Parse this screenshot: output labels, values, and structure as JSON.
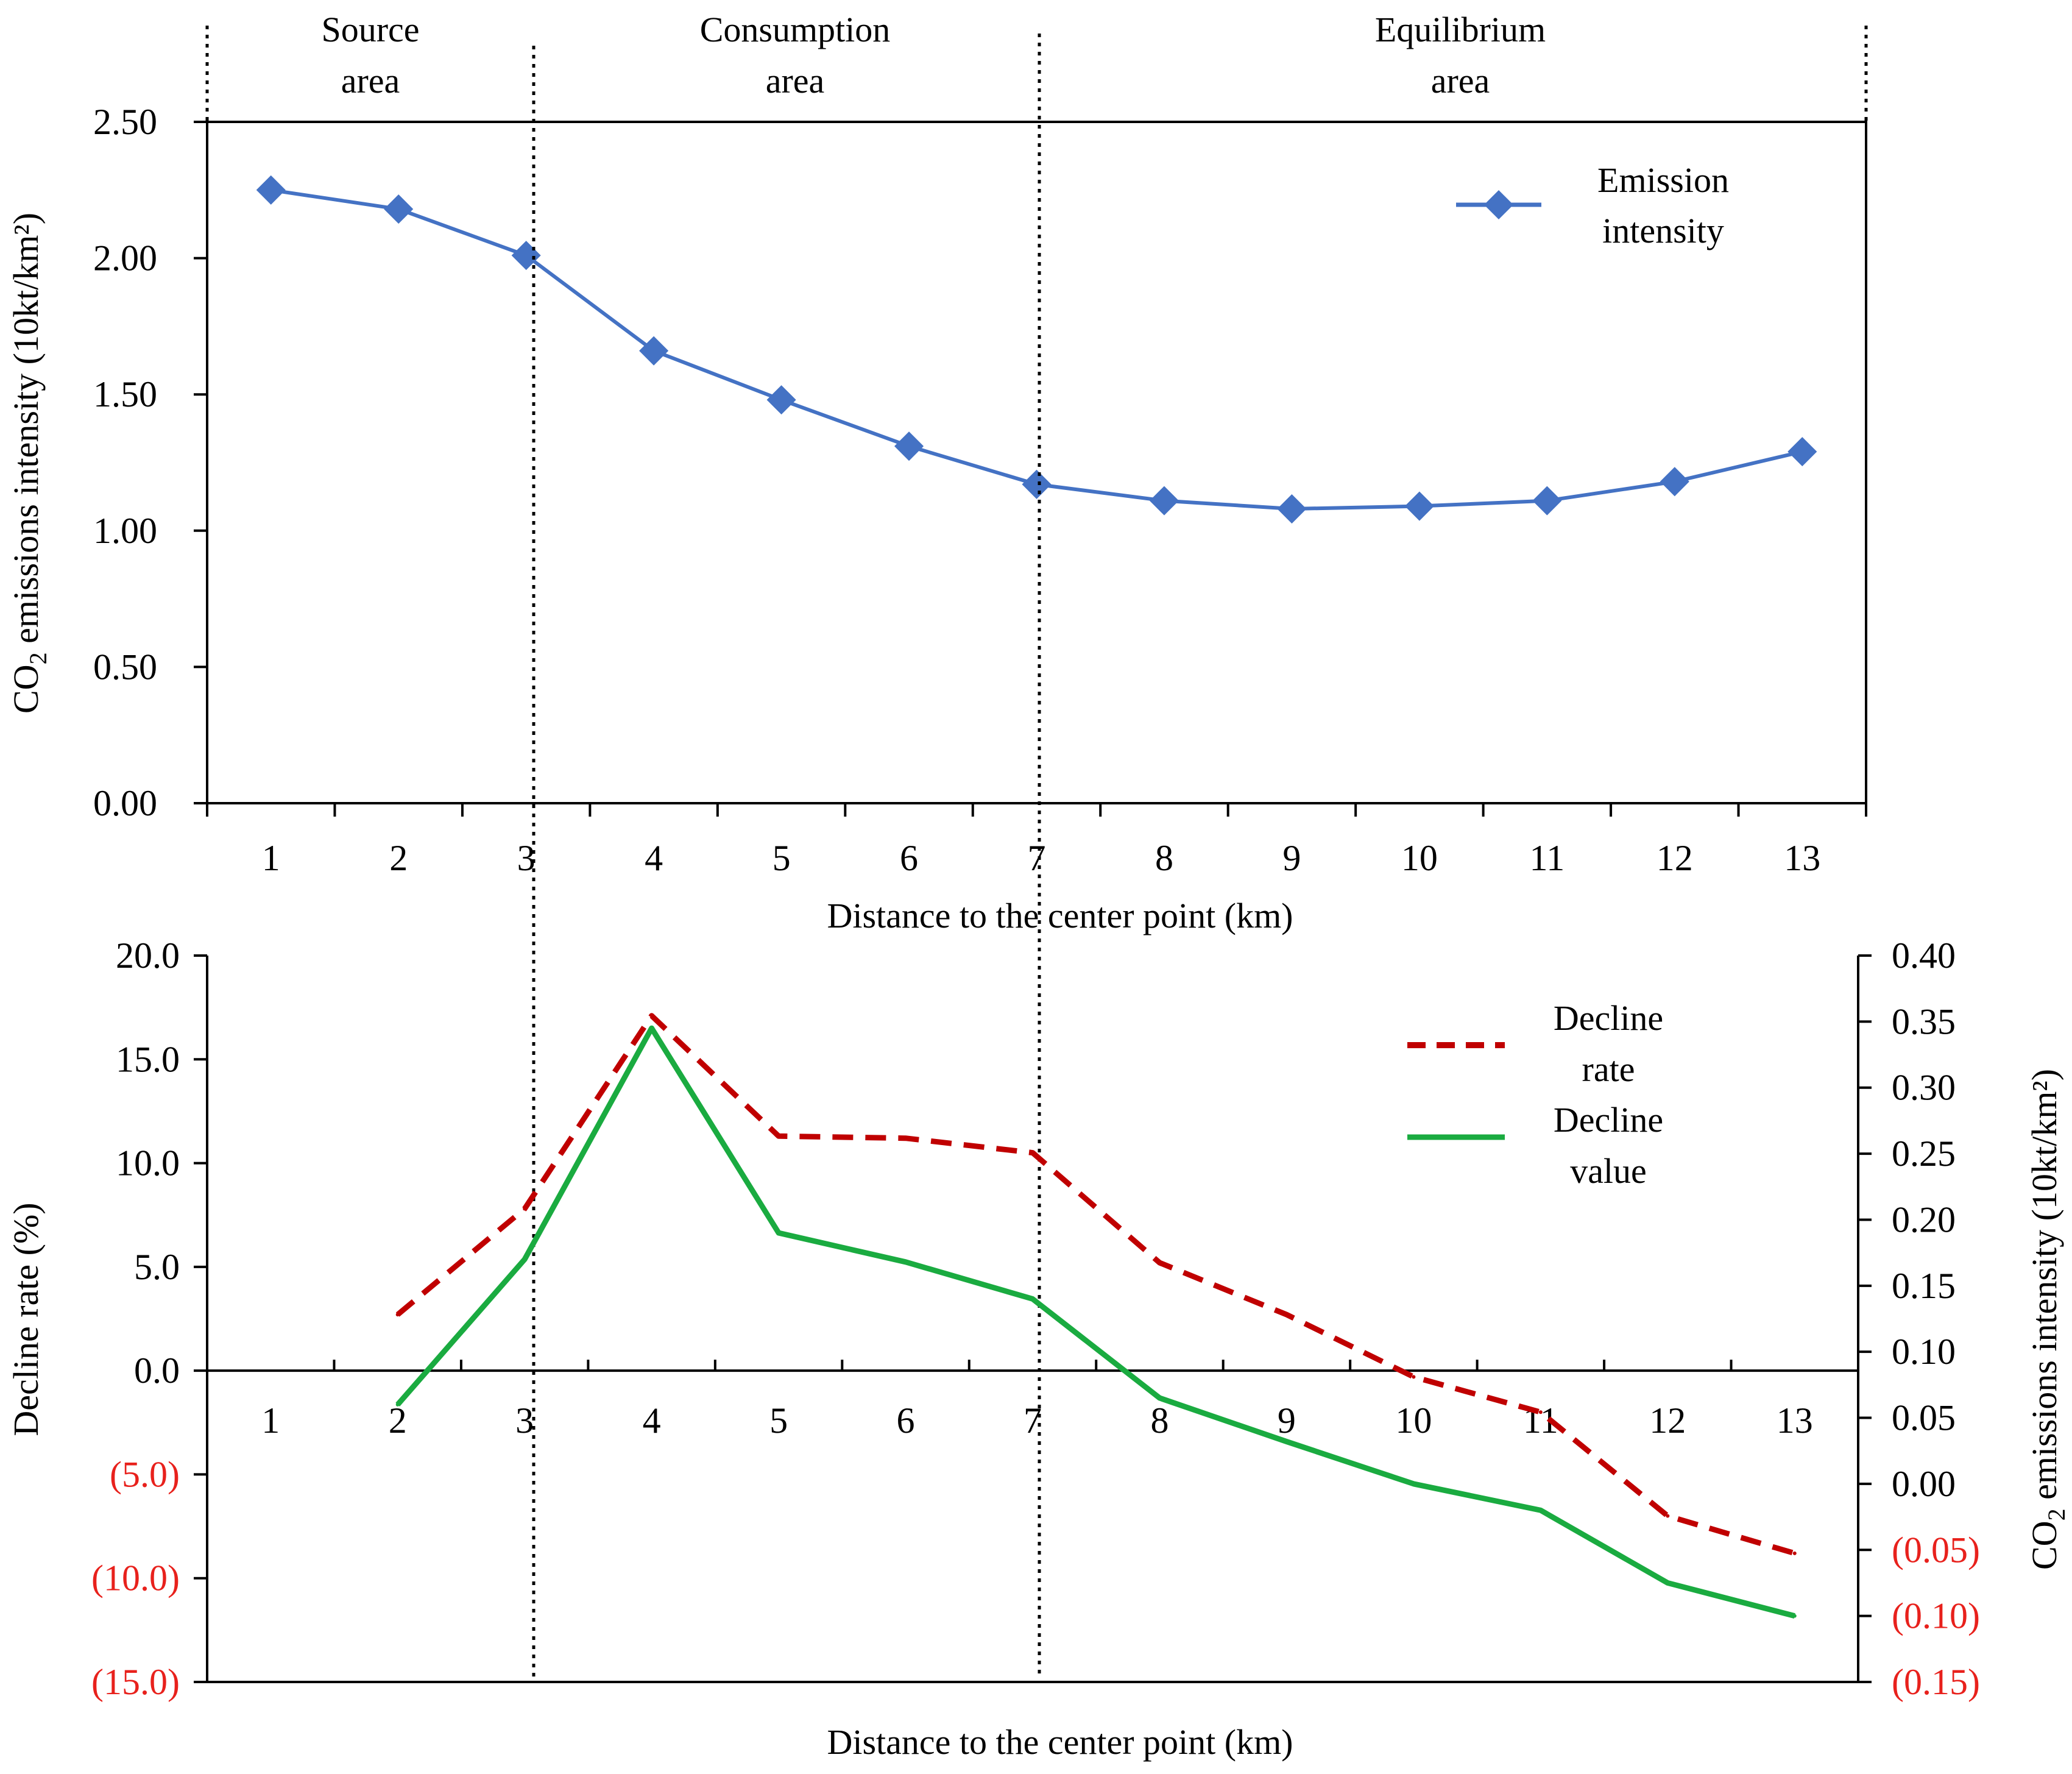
{
  "chart_data": [
    {
      "type": "line",
      "zones": [
        {
          "name": "source",
          "label_line1": "Source",
          "label_line2": "area"
        },
        {
          "name": "consumption",
          "label_line1": "Consumption",
          "label_line2": "area"
        },
        {
          "name": "equilibrium",
          "label_line1": "Equilibrium",
          "label_line2": "area"
        }
      ],
      "zone_boundaries_km": [
        0.5,
        3,
        7,
        13.5
      ],
      "x": [
        1,
        2,
        3,
        4,
        5,
        6,
        7,
        8,
        9,
        10,
        11,
        12,
        13
      ],
      "x_tick_labels": [
        "1",
        "2",
        "3",
        "4",
        "5",
        "6",
        "7",
        "8",
        "9",
        "10",
        "11",
        "12",
        "13"
      ],
      "xlabel": "Distance to the center point (km)",
      "ylabel_main": "CO",
      "ylabel_sub": "2",
      "ylabel_rest": " emissions intensity (10kt/km²)",
      "ylim": [
        0,
        2.5
      ],
      "y_ticks": [
        0,
        0.5,
        1.0,
        1.5,
        2.0,
        2.5
      ],
      "y_tick_labels": [
        "0.00",
        "0.50",
        "1.00",
        "1.50",
        "2.00",
        "2.50"
      ],
      "series": [
        {
          "name": "emission-intensity",
          "legend_line1": "Emission",
          "legend_line2": "intensity",
          "color": "#4472c4",
          "values": [
            2.25,
            2.18,
            2.01,
            1.66,
            1.48,
            1.31,
            1.17,
            1.11,
            1.08,
            1.09,
            1.11,
            1.18,
            1.29
          ]
        }
      ]
    },
    {
      "type": "line",
      "x": [
        1,
        2,
        3,
        4,
        5,
        6,
        7,
        8,
        9,
        10,
        11,
        12,
        13
      ],
      "x_tick_labels": [
        "1",
        "2",
        "3",
        "4",
        "5",
        "6",
        "7",
        "8",
        "9",
        "10",
        "11",
        "12",
        "13"
      ],
      "xlabel": "Distance to the center point (km)",
      "ylabel_left": "Decline rate (%)",
      "ylabel_right_main": "CO",
      "ylabel_right_sub": "2",
      "ylabel_right_rest": " emissions intensity (10kt/km²)",
      "ylim_left": [
        -15,
        20
      ],
      "y_left_ticks": [
        20,
        15,
        10,
        5,
        0,
        -5,
        -10,
        -15
      ],
      "y_left_tick_labels": [
        "20.0",
        "15.0",
        "10.0",
        "5.0",
        "0.0",
        "(5.0)",
        "(10.0)",
        "(15.0)"
      ],
      "ylim_right": [
        -0.15,
        0.4
      ],
      "y_right_ticks": [
        0.4,
        0.35,
        0.3,
        0.25,
        0.2,
        0.15,
        0.1,
        0.05,
        0.0,
        -0.05,
        -0.1,
        -0.15
      ],
      "y_right_tick_labels": [
        "0.40",
        "0.35",
        "0.30",
        "0.25",
        "0.20",
        "0.15",
        "0.10",
        "0.05",
        "0.00",
        "(0.05)",
        "(0.10)",
        "(0.15)"
      ],
      "negative_label_color": "#e8211c",
      "series": [
        {
          "name": "decline-rate",
          "legend_line1": "Decline",
          "legend_line2": "rate",
          "axis": "left",
          "color": "#c00000",
          "style": "dashed",
          "x": [
            2,
            3,
            4,
            5,
            6,
            7,
            8,
            9,
            10,
            11,
            12,
            13
          ],
          "values": [
            2.7,
            7.8,
            17.1,
            11.3,
            11.2,
            10.5,
            5.2,
            2.7,
            -0.3,
            -2.0,
            -7.0,
            -8.8
          ]
        },
        {
          "name": "decline-value",
          "legend_line1": "Decline",
          "legend_line2": "value",
          "axis": "right",
          "color": "#1aab40",
          "style": "solid",
          "x": [
            2,
            3,
            4,
            5,
            6,
            7,
            8,
            9,
            10,
            11,
            12,
            13
          ],
          "values": [
            0.06,
            0.17,
            0.345,
            0.19,
            0.168,
            0.14,
            0.065,
            0.032,
            0.0,
            -0.02,
            -0.075,
            -0.1
          ]
        }
      ]
    }
  ]
}
